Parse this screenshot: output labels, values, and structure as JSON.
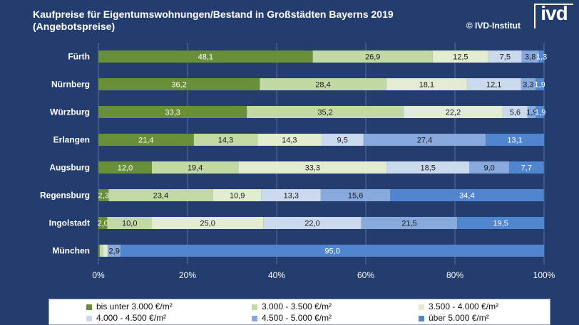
{
  "header": {
    "title": "Kaufpreise für Eigentumswohnungen/Bestand in Großstädten Bayerns 2019\n(Angebotspreise)",
    "copyright": "© IVD-Institut",
    "logo_text": "ivd"
  },
  "colors": [
    "#6a8f3b",
    "#c3d9a4",
    "#e2ecd0",
    "#cbd9ef",
    "#88a9dc",
    "#4f86cf"
  ],
  "chart_data": {
    "type": "bar",
    "orientation": "horizontal",
    "stacked": true,
    "percent": true,
    "title": "Kaufpreise für Eigentumswohnungen/Bestand in Großstädten Bayerns 2019 (Angebotspreise)",
    "categories": [
      "Fürth",
      "Nürnberg",
      "Würzburg",
      "Erlangen",
      "Augsburg",
      "Regensburg",
      "Ingolstadt",
      "München"
    ],
    "series": [
      {
        "name": "bis unter 3.000  €/m²",
        "values": [
          48.1,
          36.2,
          33.3,
          21.4,
          12.0,
          2.3,
          2.0,
          0.3
        ],
        "labels": [
          "48,1",
          "36,2",
          "33,3",
          "21,4",
          "12,0",
          "2,3",
          "2,0",
          ""
        ]
      },
      {
        "name": "3.000 - 3.500 €/m²",
        "values": [
          26.9,
          28.4,
          35.2,
          14.3,
          19.4,
          23.4,
          10.0,
          0.7
        ],
        "labels": [
          "26,9",
          "28,4",
          "35,2",
          "14,3",
          "19,4",
          "23,4",
          "10,0",
          ""
        ]
      },
      {
        "name": "3.500 - 4.000 €/m²",
        "values": [
          12.5,
          18.1,
          22.2,
          14.3,
          33.3,
          10.9,
          25.0,
          1.0
        ],
        "labels": [
          "12,5",
          "18,1",
          "22,2",
          "14,3",
          "33,3",
          "10,9",
          "25,0",
          ""
        ]
      },
      {
        "name": "4.000 - 4.500 €/m²",
        "values": [
          7.5,
          12.1,
          5.6,
          9.5,
          18.5,
          13.3,
          22.0,
          0.1
        ],
        "labels": [
          "7,5",
          "12,1",
          "5,6",
          "9,5",
          "18,5",
          "13,3",
          "22,0",
          ""
        ]
      },
      {
        "name": "4.500 - 5.000 €/m²",
        "values": [
          3.8,
          3.3,
          1.9,
          27.4,
          9.0,
          15.6,
          21.5,
          2.9
        ],
        "labels": [
          "3,8",
          "3,3",
          "1,9",
          "27,4",
          "9,0",
          "15,6",
          "21,5",
          "2,9"
        ]
      },
      {
        "name": "über 5.000  €/m²",
        "values": [
          1.3,
          1.9,
          1.9,
          13.1,
          7.7,
          34.4,
          19.5,
          95.0
        ],
        "labels": [
          "1,3",
          "1,9",
          "1,9",
          "13,1",
          "7,7",
          "34,4",
          "19,5",
          "95,0"
        ]
      }
    ],
    "x_ticks": [
      "0%",
      "20%",
      "40%",
      "60%",
      "80%",
      "100%"
    ],
    "xlim": [
      0,
      100
    ],
    "legend_position": "bottom"
  }
}
